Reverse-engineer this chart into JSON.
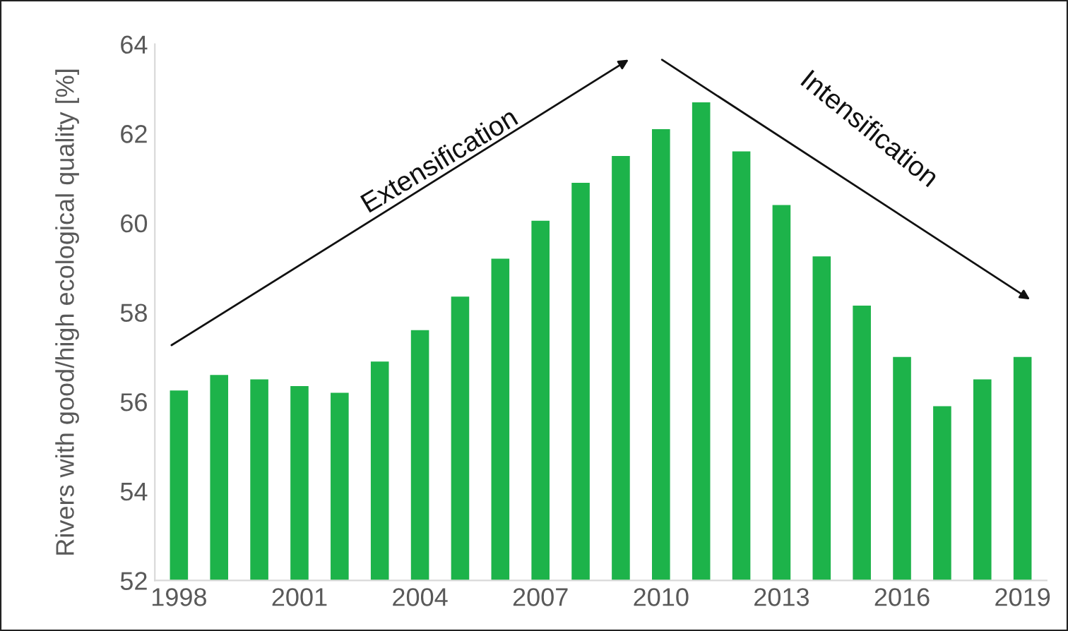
{
  "chart_data": {
    "type": "bar",
    "ylabel": "Rivers with good/high ecological quality [%]",
    "categories": [
      "1998",
      null,
      null,
      "2001",
      null,
      null,
      "2004",
      null,
      null,
      "2007",
      null,
      null,
      "2010",
      null,
      null,
      "2013",
      null,
      null,
      "2016",
      null,
      null,
      "2019"
    ],
    "values": [
      56.25,
      56.6,
      56.5,
      56.35,
      56.2,
      56.9,
      57.6,
      58.35,
      59.2,
      60.05,
      60.9,
      61.5,
      62.1,
      62.7,
      61.6,
      60.4,
      59.25,
      58.15,
      57.0,
      55.9,
      56.5,
      57.0
    ],
    "color": "#1db34a",
    "ylim": [
      52,
      64
    ],
    "yticks": [
      52,
      54,
      56,
      58,
      60,
      62,
      64
    ],
    "grid": false,
    "legend": false,
    "annotations": [
      "Extensification",
      "Intensification"
    ]
  }
}
